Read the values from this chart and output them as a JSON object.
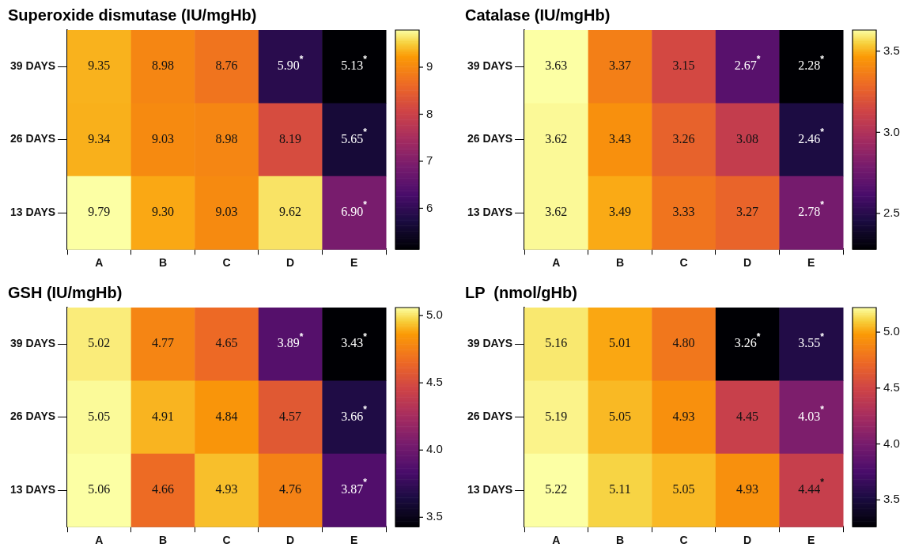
{
  "chart_data": [
    {
      "type": "heatmap",
      "title": "Superoxide dismutase (IU/mgHb)",
      "categories": [
        "A",
        "B",
        "C",
        "D",
        "E"
      ],
      "y_categories": [
        "39 DAYS",
        "26 DAYS",
        "13 DAYS"
      ],
      "cells": [
        [
          9.35,
          8.98,
          8.76,
          5.9,
          5.13
        ],
        [
          9.34,
          9.03,
          8.98,
          8.19,
          5.65
        ],
        [
          9.79,
          9.3,
          9.03,
          9.62,
          6.9
        ]
      ],
      "cell_labels": [
        [
          "9.35",
          "8.98",
          "8.76",
          "5.90$^{*}$",
          "5.13$^{*}$"
        ],
        [
          "9.34",
          "9.03",
          "8.98",
          "8.19",
          "5.65$^{*}$"
        ],
        [
          "9.79",
          "9.30",
          "9.03",
          "9.62",
          "6.90$^{*}$"
        ]
      ],
      "clim": [
        5.13,
        9.79
      ],
      "cticks": [
        6,
        7,
        8,
        9
      ]
    },
    {
      "type": "heatmap",
      "title": "Catalase (IU/mgHb)",
      "categories": [
        "A",
        "B",
        "C",
        "D",
        "E"
      ],
      "y_categories": [
        "39 DAYS",
        "26 DAYS",
        "13 DAYS"
      ],
      "cells": [
        [
          3.63,
          3.37,
          3.15,
          2.67,
          2.28
        ],
        [
          3.62,
          3.43,
          3.26,
          3.08,
          2.46
        ],
        [
          3.62,
          3.49,
          3.33,
          3.27,
          2.78
        ]
      ],
      "cell_labels": [
        [
          "3.63",
          "3.37",
          "3.15",
          "2.67$^{*}$",
          "2.28$^{*}$"
        ],
        [
          "3.62",
          "3.43",
          "3.26",
          "3.08",
          "2.46$^{*}$"
        ],
        [
          "3.62",
          "3.49",
          "3.33",
          "3.27",
          "2.78$^{*}$"
        ]
      ],
      "clim": [
        2.28,
        3.63
      ],
      "cticks": [
        {
          "value": 2.5,
          "label": "2.5"
        },
        {
          "value": 3,
          "label": "3.0"
        },
        {
          "value": 3.5,
          "label": "3.5"
        }
      ]
    },
    {
      "type": "heatmap",
      "title": "GSH (IU/mgHb)",
      "categories": [
        "A",
        "B",
        "C",
        "D",
        "E"
      ],
      "y_categories": [
        "39 DAYS",
        "26 DAYS",
        "13 DAYS"
      ],
      "cells": [
        [
          5.02,
          4.77,
          4.65,
          3.89,
          3.43
        ],
        [
          5.05,
          4.91,
          4.84,
          4.57,
          3.66
        ],
        [
          5.06,
          4.66,
          4.93,
          4.76,
          3.87
        ]
      ],
      "cell_labels": [
        [
          "5.02",
          "4.77",
          "4.65",
          "3.89$^{*}$",
          "3.43$^{*}$"
        ],
        [
          "5.05",
          "4.91",
          "4.84",
          "4.57",
          "3.66$^{*}$"
        ],
        [
          "5.06",
          "4.66",
          "4.93",
          "4.76",
          "3.87$^{*}$"
        ]
      ],
      "clim": [
        3.43,
        5.06
      ],
      "cticks": [
        {
          "value": 3.5,
          "label": "3.5"
        },
        {
          "value": 4,
          "label": "4.0"
        },
        {
          "value": 4.5,
          "label": "4.5"
        },
        {
          "value": 5,
          "label": "5.0"
        }
      ]
    },
    {
      "type": "heatmap",
      "title": "LP  (nmol/gHb)",
      "categories": [
        "A",
        "B",
        "C",
        "D",
        "E"
      ],
      "y_categories": [
        "39 DAYS",
        "26 DAYS",
        "13 DAYS"
      ],
      "cells": [
        [
          5.16,
          5.01,
          4.8,
          3.26,
          3.55
        ],
        [
          5.19,
          5.05,
          4.93,
          4.45,
          4.03
        ],
        [
          5.22,
          5.11,
          5.05,
          4.93,
          4.44
        ]
      ],
      "cell_labels": [
        [
          "5.16",
          "5.01",
          "4.80",
          "3.26$^{*}$",
          "3.55$^{*}$"
        ],
        [
          "5.19",
          "5.05",
          "4.93",
          "4.45",
          "4.03$^{*}$"
        ],
        [
          "5.22",
          "5.11",
          "5.05",
          "4.93",
          "4.44$^{*}$"
        ]
      ],
      "clim": [
        3.26,
        5.22
      ],
      "cticks": [
        {
          "value": 3.5,
          "label": "3.5"
        },
        {
          "value": 4,
          "label": "4.0"
        },
        {
          "value": 4.5,
          "label": "4.5"
        },
        {
          "value": 5,
          "label": "5.0"
        }
      ]
    }
  ]
}
